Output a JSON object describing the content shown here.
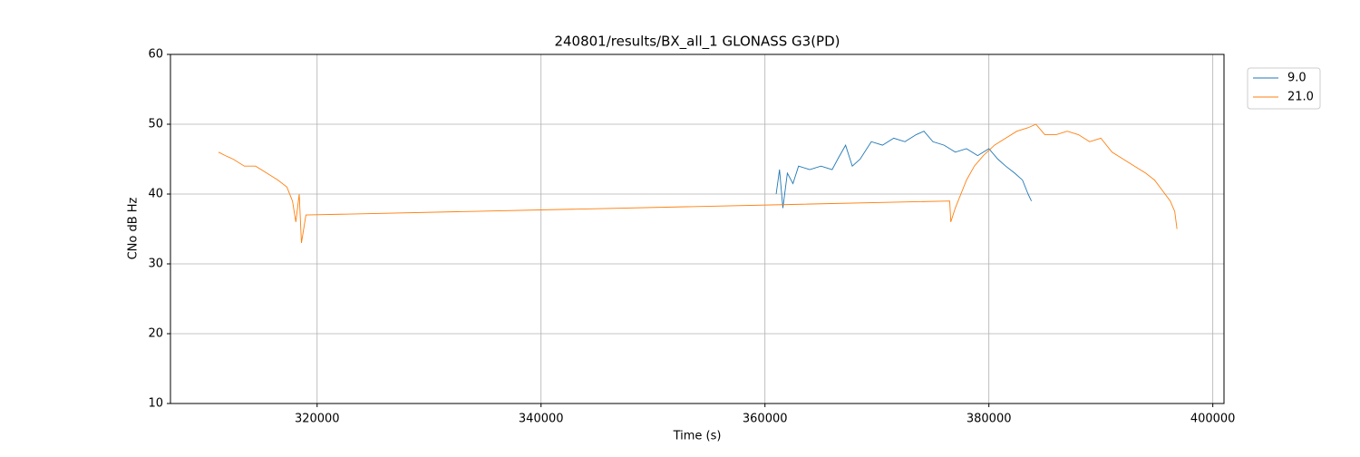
{
  "chart_data": {
    "type": "line",
    "title": "240801/results/BX_all_1 GLONASS G3(PD)",
    "x_label": "Time (s)",
    "y_label": "CNo dB Hz",
    "xlim": [
      306900,
      401000
    ],
    "ylim": [
      10,
      60
    ],
    "xticks": [
      320000,
      340000,
      360000,
      380000,
      400000
    ],
    "yticks": [
      10,
      20,
      30,
      40,
      50,
      60
    ],
    "grid": true,
    "legend": "upper right",
    "series": [
      {
        "name": "9.0",
        "color": "#1f77b4",
        "x": [
          361000,
          361300,
          361600,
          362000,
          362500,
          363000,
          364000,
          365000,
          366000,
          366500,
          367200,
          367800,
          368500,
          369500,
          370500,
          371500,
          372500,
          373500,
          374200,
          375000,
          376000,
          377000,
          378000,
          379000,
          380000,
          380800,
          381500,
          382300,
          383000,
          383500,
          383800
        ],
        "values": [
          40,
          43.5,
          38,
          43,
          41.5,
          44,
          43.5,
          44,
          43.5,
          45,
          47,
          44,
          45,
          47.5,
          47,
          48,
          47.5,
          48.5,
          49,
          47.5,
          47,
          46,
          46.5,
          45.5,
          46.5,
          45,
          44,
          43,
          42,
          40,
          39
        ]
      },
      {
        "name": "21.0",
        "color": "#ff7f0e",
        "x": [
          311200,
          311800,
          312500,
          313500,
          314500,
          315500,
          316500,
          317300,
          317800,
          318100,
          318400,
          318600,
          318800,
          319000,
          376500,
          376600,
          377000,
          377500,
          378000,
          378700,
          379500,
          380500,
          381500,
          382500,
          383500,
          384200,
          385000,
          386000,
          387000,
          388000,
          389000,
          390000,
          391000,
          392000,
          393000,
          394000,
          394800,
          395500,
          396200,
          396600,
          396800
        ],
        "values": [
          46,
          45.5,
          45,
          44,
          44,
          43,
          42,
          41,
          39,
          36,
          40,
          33,
          35,
          37,
          39,
          36,
          38,
          40,
          42,
          44,
          45.5,
          47,
          48,
          49,
          49.5,
          50,
          48.5,
          48.5,
          49,
          48.5,
          47.5,
          48,
          46,
          45,
          44,
          43,
          42,
          40.5,
          39,
          37.5,
          35
        ]
      }
    ]
  }
}
